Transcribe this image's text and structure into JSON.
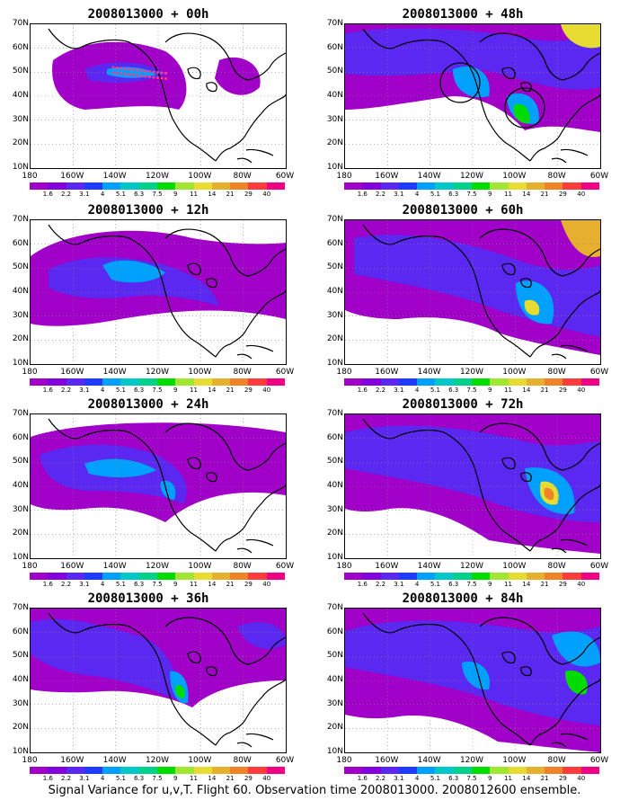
{
  "panels": [
    {
      "title": "2008013000 + 00h",
      "circles": false,
      "dots": true
    },
    {
      "title": "2008013000 + 12h",
      "circles": false,
      "dots": false
    },
    {
      "title": "2008013000 + 24h",
      "circles": false,
      "dots": false
    },
    {
      "title": "2008013000 + 36h",
      "circles": false,
      "dots": false
    },
    {
      "title": "2008013000 + 48h",
      "circles": true,
      "dots": false
    },
    {
      "title": "2008013000 + 60h",
      "circles": false,
      "dots": false
    },
    {
      "title": "2008013000 + 72h",
      "circles": false,
      "dots": false
    },
    {
      "title": "2008013000 + 84h",
      "circles": false,
      "dots": false
    }
  ],
  "lat_labels": [
    "70N",
    "60N",
    "50N",
    "40N",
    "30N",
    "20N",
    "10N"
  ],
  "lon_labels": [
    "180",
    "160W",
    "140W",
    "120W",
    "100W",
    "80W",
    "60W"
  ],
  "colorbar": {
    "labels": [
      "1.6",
      "2.2",
      "3.1",
      "4",
      "5.1",
      "6.3",
      "7.5",
      "9",
      "11",
      "14",
      "21",
      "29",
      "40"
    ],
    "colors": [
      "#a000c8",
      "#8200dc",
      "#5a28f0",
      "#1e3cff",
      "#00a0ff",
      "#00c8c8",
      "#00d28c",
      "#00dc00",
      "#a0e632",
      "#e6dc32",
      "#e6af2d",
      "#f08228",
      "#fa3c3c",
      "#f00082"
    ]
  },
  "caption": "Signal Variance for u,v,T. Flight 60. Observation time 2008013000. 2008012600 ensemble."
}
